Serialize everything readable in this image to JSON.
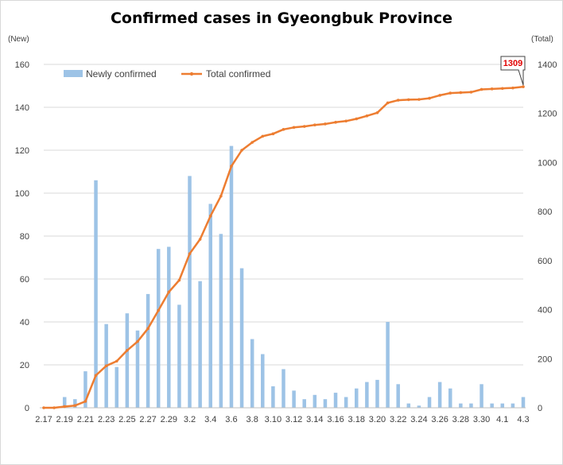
{
  "chart_data": {
    "type": "bar+line",
    "title": "Confirmed cases in Gyeongbuk Province",
    "y_left_label": "(New)",
    "y_right_label": "(Total)",
    "y_left_range": [
      0,
      160
    ],
    "y_left_ticks": [
      0,
      20,
      40,
      60,
      80,
      100,
      120,
      140,
      160
    ],
    "y_right_range": [
      0,
      1400
    ],
    "y_right_ticks": [
      0,
      200,
      400,
      600,
      800,
      1000,
      1200,
      1400
    ],
    "grid": "horizontal",
    "legend_placement": "top-left",
    "x": [
      "2.17",
      "2.18",
      "2.19",
      "2.20",
      "2.21",
      "2.22",
      "2.23",
      "2.24",
      "2.25",
      "2.26",
      "2.27",
      "2.28",
      "2.29",
      "3.1",
      "3.2",
      "3.3",
      "3.4",
      "3.5",
      "3.6",
      "3.7",
      "3.8",
      "3.9",
      "3.10",
      "3.11",
      "3.12",
      "3.13",
      "3.14",
      "3.15",
      "3.16",
      "3.17",
      "3.18",
      "3.19",
      "3.20",
      "3.21",
      "3.22",
      "3.23",
      "3.24",
      "3.25",
      "3.26",
      "3.27",
      "3.28",
      "3.29",
      "3.30",
      "3.31",
      "4.1",
      "4.2",
      "4.3"
    ],
    "x_tick_labels": [
      "2.17",
      "",
      "2.19",
      "",
      "2.21",
      "",
      "2.23",
      "",
      "2.25",
      "",
      "2.27",
      "",
      "2.29",
      "",
      "3.2",
      "",
      "3.4",
      "",
      "3.6",
      "",
      "3.8",
      "",
      "3.10",
      "",
      "3.12",
      "",
      "3.14",
      "",
      "3.16",
      "",
      "3.18",
      "",
      "3.20",
      "",
      "3.22",
      "",
      "3.24",
      "",
      "3.26",
      "",
      "3.28",
      "",
      "3.30",
      "",
      "4.1",
      "",
      "4.3"
    ],
    "series": [
      {
        "name": "Newly confirmed",
        "type": "bar",
        "axis": "left",
        "color": "#9dc3e6",
        "values": [
          0,
          0,
          5,
          4,
          17,
          106,
          39,
          19,
          44,
          36,
          53,
          74,
          75,
          48,
          108,
          59,
          95,
          81,
          122,
          65,
          32,
          25,
          10,
          18,
          8,
          4,
          6,
          4,
          7,
          5,
          9,
          12,
          13,
          40,
          11,
          2,
          1,
          5,
          12,
          9,
          2,
          2,
          11,
          2,
          2,
          2,
          5
        ]
      },
      {
        "name": "Total confirmed",
        "type": "line",
        "axis": "right",
        "color": "#ed7d31",
        "values": [
          0,
          0,
          5,
          9,
          26,
          132,
          171,
          190,
          234,
          270,
          323,
          397,
          472,
          520,
          628,
          687,
          782,
          863,
          985,
          1050,
          1082,
          1107,
          1117,
          1135,
          1143,
          1147,
          1153,
          1157,
          1164,
          1169,
          1178,
          1190,
          1203,
          1243,
          1254,
          1256,
          1257,
          1262,
          1274,
          1283,
          1285,
          1287,
          1298,
          1300,
          1302,
          1304,
          1309
        ]
      }
    ],
    "annotation": {
      "label": "1309",
      "color": "#e00000"
    }
  }
}
